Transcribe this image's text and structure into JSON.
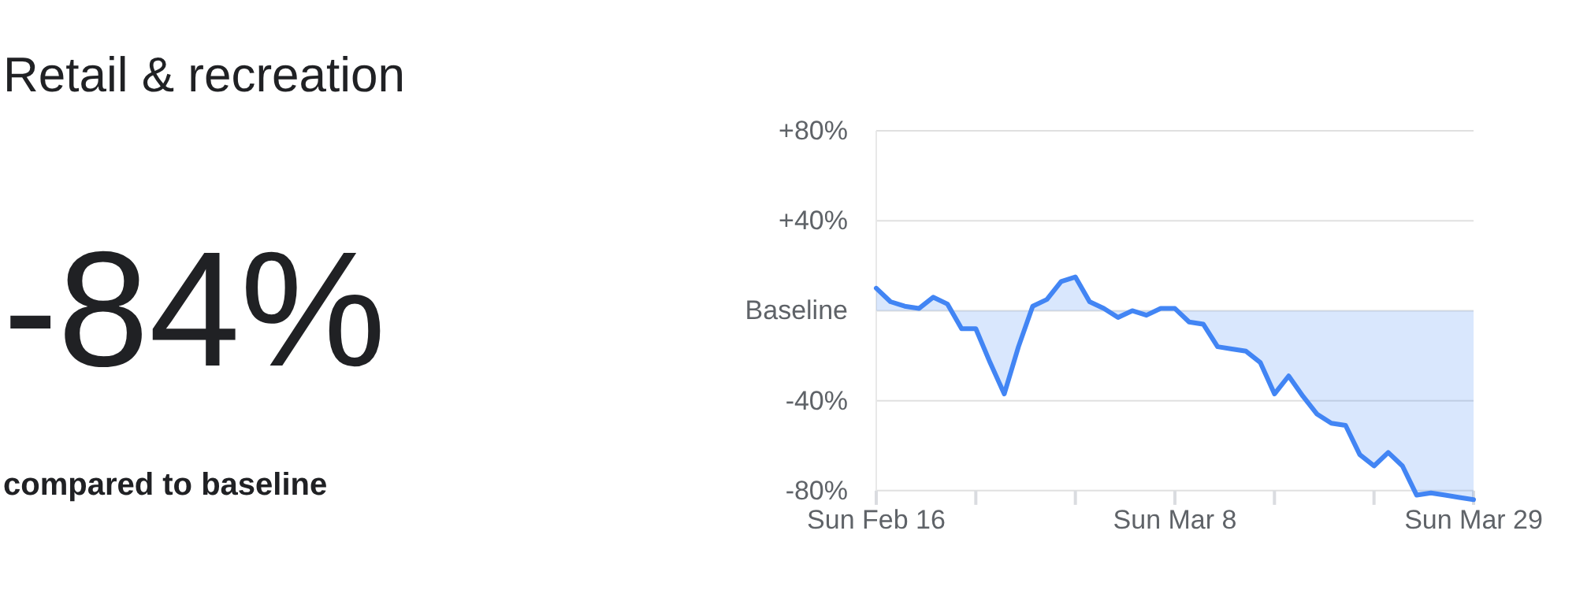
{
  "chart_data": {
    "type": "area",
    "title": "Retail & recreation",
    "annotations": [
      "-84%",
      "compared to baseline"
    ],
    "x": [
      "--02-16",
      "--02-17",
      "--02-18",
      "--02-19",
      "--02-20",
      "--02-21",
      "--02-22",
      "--02-23",
      "--02-24",
      "--02-25",
      "--02-26",
      "--02-27",
      "--02-28",
      "--02-29",
      "--03-01",
      "--03-02",
      "--03-03",
      "--03-04",
      "--03-05",
      "--03-06",
      "--03-07",
      "--03-08",
      "--03-09",
      "--03-10",
      "--03-11",
      "--03-12",
      "--03-13",
      "--03-14",
      "--03-15",
      "--03-16",
      "--03-17",
      "--03-18",
      "--03-19",
      "--03-20",
      "--03-21",
      "--03-22",
      "--03-23",
      "--03-24",
      "--03-25",
      "--03-26",
      "--03-27",
      "--03-28",
      "--03-29"
    ],
    "series": [
      {
        "color": "#4285f4",
        "values": [
          10,
          4,
          2,
          1,
          6,
          3,
          -8,
          -8,
          -23,
          -37,
          -16,
          2,
          5,
          13,
          15,
          4,
          1,
          -3,
          0,
          -2,
          1,
          1,
          -5,
          -6,
          -16,
          -17,
          -18,
          -23,
          -37,
          -29,
          -38,
          -46,
          -50,
          -51,
          -64,
          -69,
          -63,
          -69,
          -82,
          -81,
          -82,
          -83,
          -84
        ]
      }
    ],
    "xlim": [
      "--02-16",
      "--03-29"
    ],
    "xticks": [
      {
        "value": "--02-16",
        "label": "Sun Feb 16"
      },
      {
        "value": "--02-23",
        "label": null
      },
      {
        "value": "--03-01",
        "label": null
      },
      {
        "value": "--03-08",
        "label": "Sun Mar 8"
      },
      {
        "value": "--03-15",
        "label": null
      },
      {
        "value": "--03-22",
        "label": null
      },
      {
        "value": "--03-29",
        "label": "Sun Mar 29"
      }
    ],
    "ylim": [
      -86,
      80
    ],
    "yticks": [
      {
        "value": 80,
        "label": "+80%"
      },
      {
        "value": 40,
        "label": "+40%"
      },
      {
        "value": 0,
        "label": "Baseline"
      },
      {
        "value": -40,
        "label": "-40%"
      },
      {
        "value": -80,
        "label": "-80%"
      }
    ],
    "grid": "y"
  }
}
